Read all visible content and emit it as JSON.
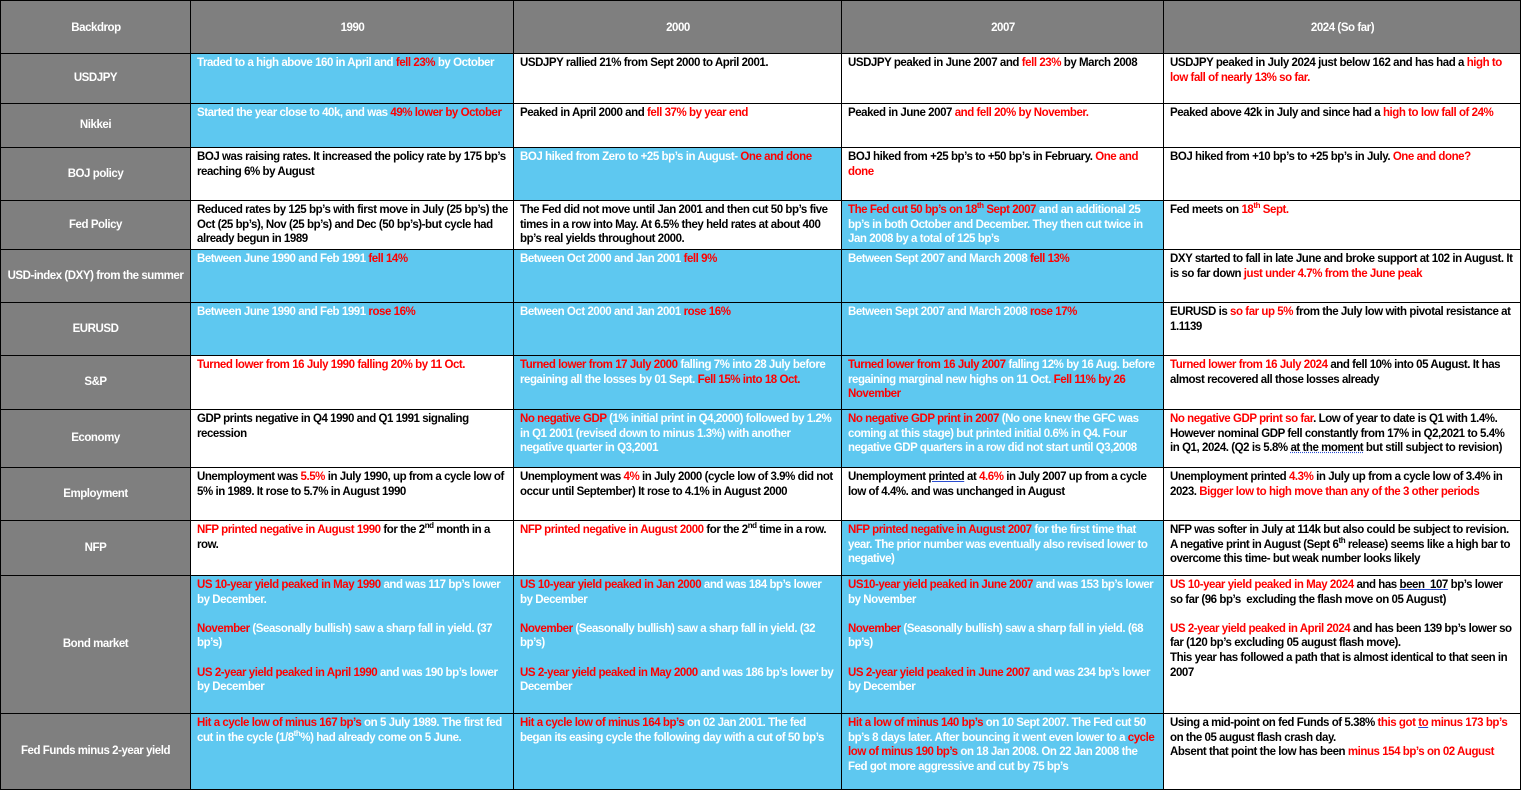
{
  "colors": {
    "header": "#7f7f7f",
    "blue": "#5ec8f0",
    "highlight": "#ff0000",
    "text_on_blue": "#ffffff",
    "text_on_white": "#000000"
  },
  "headers": [
    "Backdrop",
    "1990",
    "2000",
    "2007",
    "2024 (So far)"
  ],
  "rows": [
    {
      "label": "USDJPY",
      "cells": [
        {
          "bg": "blue",
          "segs": [
            [
              "Traded to a high above 160 in April and ",
              ""
            ],
            [
              "fell 23%",
              "r"
            ],
            [
              " by October",
              ""
            ]
          ]
        },
        {
          "bg": "white",
          "segs": [
            [
              "USDJPY rallied 21% from Sept 2000 to April 2001.",
              ""
            ]
          ]
        },
        {
          "bg": "white",
          "segs": [
            [
              "USDJPY peaked in June 2007 and ",
              ""
            ],
            [
              "fell 23%",
              "r"
            ],
            [
              " by March 2008",
              ""
            ]
          ]
        },
        {
          "bg": "white",
          "segs": [
            [
              "USDJPY peaked in July 2024 just below 162 and has had a ",
              ""
            ],
            [
              "high to low fall of nearly 13% so far.",
              "r"
            ]
          ]
        }
      ]
    },
    {
      "label": "Nikkei",
      "cells": [
        {
          "bg": "blue",
          "segs": [
            [
              "Started the year close to 40k, and was ",
              ""
            ],
            [
              "49% lower by October",
              "r"
            ]
          ]
        },
        {
          "bg": "white",
          "segs": [
            [
              "Peaked in April 2000 and ",
              ""
            ],
            [
              "fell 37% by year end",
              "r"
            ]
          ]
        },
        {
          "bg": "white",
          "segs": [
            [
              "Peaked in June 2007 ",
              ""
            ],
            [
              "and fell 20% by November.",
              "r"
            ]
          ]
        },
        {
          "bg": "white",
          "segs": [
            [
              "Peaked above 42k in July and since had a ",
              ""
            ],
            [
              "high to low fall of 24%",
              "r"
            ]
          ]
        }
      ]
    },
    {
      "label": "BOJ policy",
      "cells": [
        {
          "bg": "white",
          "segs": [
            [
              "BOJ was raising rates. It increased the policy rate by 175 bp’s reaching 6% by August",
              ""
            ]
          ]
        },
        {
          "bg": "blue",
          "segs": [
            [
              "BOJ hiked from Zero to +25 bp’s in August- ",
              ""
            ],
            [
              "One and done",
              "r"
            ]
          ]
        },
        {
          "bg": "white",
          "segs": [
            [
              "BOJ hiked from +25 bp’s to +50 bp’s in February. ",
              ""
            ],
            [
              "One and done",
              "r"
            ]
          ]
        },
        {
          "bg": "white",
          "segs": [
            [
              "BOJ hiked from +10 bp’s to +25 bp’s in July. ",
              ""
            ],
            [
              "One and done?",
              "r"
            ]
          ]
        }
      ]
    },
    {
      "label": "Fed Policy",
      "cells": [
        {
          "bg": "white",
          "segs": [
            [
              "Reduced rates by 125 bp’s with first move in July (25 bp’s) the Oct (25 bp’s), Nov (25 bp’s) and Dec (50 bp’s)-but cycle had already begun in 1989",
              ""
            ]
          ]
        },
        {
          "bg": "white",
          "segs": [
            [
              "The Fed did not move until Jan 2001 and then cut 50 bp’s five times in a row into May. At 6.5% they held rates at about 400 bp’s real yields throughout 2000.",
              ""
            ]
          ]
        },
        {
          "bg": "blue",
          "segs": [
            [
              "The Fed cut 50 bp’s on 18",
              "r"
            ],
            [
              "th",
              "r s"
            ],
            [
              " Sept 2007",
              "r"
            ],
            [
              " and an additional 25 bp’s in both October and December. They then cut twice in Jan 2008 by a total of 125 bp’s",
              ""
            ]
          ]
        },
        {
          "bg": "white",
          "segs": [
            [
              "Fed meets on ",
              ""
            ],
            [
              "18",
              "r"
            ],
            [
              "th",
              "r s"
            ],
            [
              " Sept.",
              "r"
            ]
          ]
        }
      ]
    },
    {
      "label": "USD-index (DXY) from the summer",
      "cells": [
        {
          "bg": "blue",
          "segs": [
            [
              "Between June 1990 and Feb 1991 ",
              ""
            ],
            [
              "fell 14%",
              "r"
            ]
          ]
        },
        {
          "bg": "blue",
          "segs": [
            [
              "Between Oct 2000 and Jan 2001 ",
              ""
            ],
            [
              "fell 9%",
              "r"
            ]
          ]
        },
        {
          "bg": "blue",
          "segs": [
            [
              "Between Sept 2007 and March 2008 ",
              ""
            ],
            [
              "fell 13%",
              "r"
            ]
          ]
        },
        {
          "bg": "white",
          "segs": [
            [
              "DXY started to fall in late June and broke support at 102 in August. It is so far down ",
              ""
            ],
            [
              "just under 4.7% from the June peak",
              "r"
            ]
          ]
        }
      ]
    },
    {
      "label": "EURUSD",
      "cells": [
        {
          "bg": "blue",
          "segs": [
            [
              "Between June 1990 and Feb 1991 ",
              ""
            ],
            [
              "rose 16%",
              "r"
            ]
          ]
        },
        {
          "bg": "blue",
          "segs": [
            [
              "Between Oct 2000 and Jan 2001 ",
              ""
            ],
            [
              "rose 16%",
              "r"
            ]
          ]
        },
        {
          "bg": "blue",
          "segs": [
            [
              "Between Sept 2007 and March 2008 ",
              ""
            ],
            [
              "rose 17%",
              "r"
            ]
          ]
        },
        {
          "bg": "white",
          "segs": [
            [
              "EURUSD is ",
              ""
            ],
            [
              "so far up 5%",
              "r"
            ],
            [
              " from the July low with pivotal resistance at 1.1139",
              ""
            ]
          ]
        }
      ]
    },
    {
      "label": "S&P",
      "cells": [
        {
          "bg": "white",
          "segs": [
            [
              "Turned lower from 16 July 1990 falling 20% by 11 Oct.",
              "r"
            ]
          ]
        },
        {
          "bg": "blue",
          "segs": [
            [
              "Turned lower from 17 July 2000",
              "r"
            ],
            [
              " falling 7% into 28 July before regaining all the losses by 01 Sept. ",
              ""
            ],
            [
              "Fell 15% into 18 Oct.",
              "r"
            ]
          ]
        },
        {
          "bg": "blue",
          "segs": [
            [
              "Turned lower from 16 July 2007",
              "r"
            ],
            [
              " falling 12% by 16 Aug. before regaining marginal new highs on 11 Oct. ",
              ""
            ],
            [
              "Fell 11% by 26 November",
              "r"
            ]
          ]
        },
        {
          "bg": "white",
          "segs": [
            [
              "Turned lower from 16 July 2024",
              "r"
            ],
            [
              " and fell 10% into 05 August. It has almost recovered all those losses already",
              ""
            ]
          ]
        }
      ]
    },
    {
      "label": "Economy",
      "cells": [
        {
          "bg": "white",
          "segs": [
            [
              "GDP prints negative in Q4 1990 and Q1 1991 signaling recession",
              ""
            ]
          ]
        },
        {
          "bg": "blue",
          "segs": [
            [
              "No negative GDP",
              "r"
            ],
            [
              " (1% initial print in Q4,2000) followed by 1.2% in Q1 2001 (revised down to minus 1.3%) with another negative quarter in Q3,2001",
              ""
            ]
          ]
        },
        {
          "bg": "blue",
          "segs": [
            [
              "No negative GDP print in 2007",
              "r"
            ],
            [
              " (No one knew the GFC was coming at this stage) but printed initial 0.6% in Q4. Four negative GDP quarters in a row did not start until Q3,2008",
              ""
            ]
          ]
        },
        {
          "bg": "white",
          "segs": [
            [
              "No negative GDP print so far",
              "r"
            ],
            [
              ". Low of year to date is Q1 with 1.4%. However nominal GDP fell constantly from 17% in Q2,2021 to 5.4% in Q1, 2024. (Q2 is 5.8% ",
              ""
            ],
            [
              "at the moment",
              "ud"
            ],
            [
              " but still subject to revision)",
              ""
            ]
          ]
        }
      ]
    },
    {
      "label": "Employment",
      "cells": [
        {
          "bg": "white",
          "segs": [
            [
              "Unemployment was ",
              ""
            ],
            [
              "5.5%",
              "r"
            ],
            [
              " in July 1990, up from a cycle low of 5% in 1989. It rose to 5.7% in August 1990",
              ""
            ]
          ]
        },
        {
          "bg": "white",
          "segs": [
            [
              "Unemployment was ",
              ""
            ],
            [
              "4%",
              "r"
            ],
            [
              " in July 2000 (cycle low of 3.9% did not occur until September) It rose to 4.1% in August 2000",
              ""
            ]
          ]
        },
        {
          "bg": "white",
          "segs": [
            [
              "Unemployment ",
              ""
            ],
            [
              "printed",
              "u"
            ],
            [
              " at ",
              ""
            ],
            [
              "4.6%",
              "r"
            ],
            [
              " in July 2007 up from a cycle low of 4.4%. and was unchanged in August",
              ""
            ]
          ]
        },
        {
          "bg": "white",
          "segs": [
            [
              "Unemployment printed ",
              ""
            ],
            [
              "4.3%",
              "r"
            ],
            [
              " in July up from a cycle low of 3.4% in 2023. ",
              ""
            ],
            [
              "Bigger low to high move than any of the 3 other periods",
              "r"
            ]
          ]
        }
      ]
    },
    {
      "label": "NFP",
      "cells": [
        {
          "bg": "white",
          "segs": [
            [
              "NFP printed negative in August 1990",
              "r"
            ],
            [
              " for the 2",
              ""
            ],
            [
              "nd",
              "s"
            ],
            [
              " month in a row.",
              ""
            ]
          ]
        },
        {
          "bg": "white",
          "segs": [
            [
              "NFP printed negative in August 2000",
              "r"
            ],
            [
              " for the 2",
              ""
            ],
            [
              "nd",
              "s"
            ],
            [
              " time in a row.",
              ""
            ]
          ]
        },
        {
          "bg": "blue",
          "segs": [
            [
              "NFP printed negative in August 2007",
              "r"
            ],
            [
              " for the first time that year. The prior number was eventually also revised lower to negative)",
              ""
            ]
          ]
        },
        {
          "bg": "white",
          "segs": [
            [
              "NFP was softer in July at 114k but also could be subject to revision. A negative print in August (Sept 6",
              ""
            ],
            [
              "th",
              "s"
            ],
            [
              " release) seems like a high bar to overcome this time- but weak number looks likely",
              ""
            ]
          ]
        }
      ]
    },
    {
      "label": "Bond market",
      "cells": [
        {
          "bg": "blue",
          "segs": [
            [
              "US 10-year yield peaked in May 1990",
              "r"
            ],
            [
              " and was 117 bp’s lower by December.\n\n",
              ""
            ],
            [
              "November",
              "r"
            ],
            [
              " (Seasonally bullish) saw a sharp fall in yield. (37 bp’s)\n\n",
              ""
            ],
            [
              "US 2-year yield peaked in April 1990",
              "r"
            ],
            [
              " and was 190 bp’s lower by December",
              ""
            ]
          ]
        },
        {
          "bg": "blue",
          "segs": [
            [
              "US 10-year yield peaked in Jan 2000",
              "r"
            ],
            [
              " and was 184 bp’s lower by December\n\n",
              ""
            ],
            [
              "November",
              "r"
            ],
            [
              " (Seasonally bullish) saw a sharp fall in yield. (32 bp’s)\n\n",
              ""
            ],
            [
              "US 2-year yield peaked in May 2000",
              "r"
            ],
            [
              " and was 186 bp’s lower by December",
              ""
            ]
          ]
        },
        {
          "bg": "blue",
          "segs": [
            [
              "US10-year yield peaked in June 2007",
              "r"
            ],
            [
              " and was 153 bp’s lower by November\n\n",
              ""
            ],
            [
              "November",
              "r"
            ],
            [
              " (Seasonally bullish) saw a sharp fall in yield. (68 bp’s)\n\n",
              ""
            ],
            [
              "US 2-year yield peaked in June 2007",
              "r"
            ],
            [
              " and was 234 bp’s lower by December",
              ""
            ]
          ]
        },
        {
          "bg": "white",
          "segs": [
            [
              "US 10-year yield peaked in May 2024",
              "r"
            ],
            [
              " and has ",
              ""
            ],
            [
              "been  107",
              "u"
            ],
            [
              " bp’s lower so far (96 bp’s  excluding the flash move on 05 August)\n\n",
              ""
            ],
            [
              "US 2-year yield peaked in April 2024",
              "r"
            ],
            [
              " and has been 139 bp’s lower so far (120 bp’s excluding 05 august flash move).\nThis year has followed a path that is almost identical to that seen in 2007",
              ""
            ]
          ]
        }
      ]
    },
    {
      "label": "Fed Funds minus 2-year yield",
      "cells": [
        {
          "bg": "blue",
          "segs": [
            [
              "Hit a cycle low of minus 167 bp’s",
              "r"
            ],
            [
              " on 5 July 1989. The first fed cut in the cycle (1/8",
              ""
            ],
            [
              "th",
              "s"
            ],
            [
              "%) had already come on 5 June.",
              ""
            ]
          ]
        },
        {
          "bg": "blue",
          "segs": [
            [
              "Hit a cycle low of minus 164 bp’s",
              "r"
            ],
            [
              " on 02 Jan 2001. The fed began its easing cycle the following day with a cut of 50 bp’s",
              ""
            ]
          ]
        },
        {
          "bg": "blue",
          "segs": [
            [
              "Hit a low of minus 140 bp’s",
              "r"
            ],
            [
              " on 10 Sept 2007. The Fed cut 50 bp’s 8 days later. After bouncing it went even lower to a ",
              ""
            ],
            [
              "cycle low of minus 190 bp’s",
              "r"
            ],
            [
              " on 18 Jan 2008. On 22 Jan 2008 the Fed got more aggressive and cut by 75 bp’s",
              ""
            ]
          ]
        },
        {
          "bg": "white",
          "segs": [
            [
              "Using a mid-point on fed Funds of 5.38% ",
              ""
            ],
            [
              "this got ",
              "r"
            ],
            [
              "to",
              "r u"
            ],
            [
              " minus 173 bp’s",
              "r"
            ],
            [
              " on the 05 august flash crash day.\nAbsent that point the low has been ",
              ""
            ],
            [
              "minus 154 bp’s on 02 August",
              "r"
            ]
          ]
        }
      ]
    }
  ]
}
